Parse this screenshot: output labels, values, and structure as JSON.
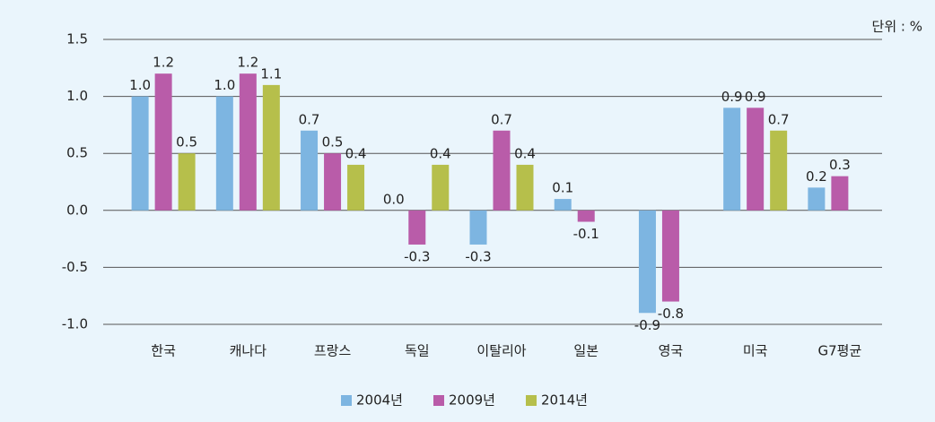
{
  "chart_data": {
    "type": "bar",
    "unit_label": "단위 : %",
    "categories": [
      "한국",
      "캐나다",
      "프랑스",
      "독일",
      "이탈리아",
      "일본",
      "영국",
      "미국",
      "G7평균"
    ],
    "series": [
      {
        "name": "2004년",
        "color": "#7db5e1",
        "values": [
          1.0,
          1.0,
          0.7,
          0.0,
          -0.3,
          0.1,
          -0.9,
          0.9,
          0.2
        ],
        "value_labels": [
          "1.0",
          "1.0",
          "0.7",
          "0.0",
          "-0.3",
          "0.1",
          "-0.9",
          "0.9",
          "0.2"
        ]
      },
      {
        "name": "2009년",
        "color": "#b95ca9",
        "values": [
          1.2,
          1.2,
          0.5,
          -0.3,
          0.7,
          -0.1,
          -0.8,
          0.9,
          0.3
        ],
        "value_labels": [
          "1.2",
          "1.2",
          "0.5",
          "-0.3",
          "0.7",
          "-0.1",
          "-0.8",
          "0.9",
          "0.3"
        ]
      },
      {
        "name": "2014년",
        "color": "#b6bf4b",
        "values": [
          0.5,
          1.1,
          0.4,
          0.4,
          0.4,
          null,
          null,
          0.7,
          null
        ],
        "value_labels": [
          "0.5",
          "1.1",
          "0.4",
          "0.4",
          "0.4",
          null,
          null,
          "0.7",
          null
        ]
      }
    ],
    "ylim": [
      -1.0,
      1.5
    ],
    "yticks": [
      {
        "value": -1.0,
        "label": "-1.0"
      },
      {
        "value": -0.5,
        "label": "-0.5"
      },
      {
        "value": 0.0,
        "label": "0.0"
      },
      {
        "value": 0.5,
        "label": "0.5"
      },
      {
        "value": 1.0,
        "label": "1.0"
      },
      {
        "value": 1.5,
        "label": "1.5"
      }
    ],
    "grid": true,
    "legend": "bottom"
  }
}
